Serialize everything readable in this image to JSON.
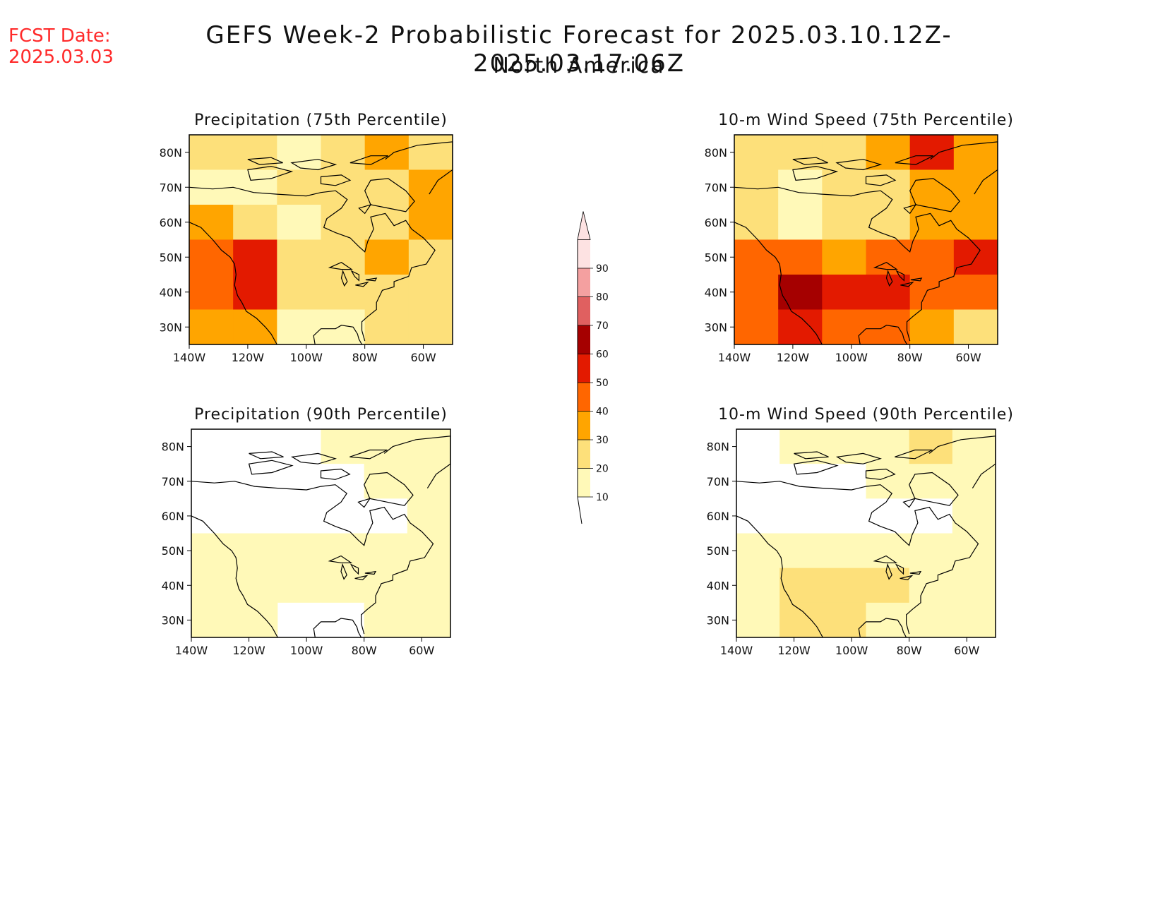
{
  "header": {
    "fcst_label": "FCST Date:",
    "fcst_value": "2025.03.03",
    "title": "GEFS Week-2 Probabilistic Forecast for 2025.03.10.12Z-2025.03.17.06Z",
    "subtitle": "North America"
  },
  "colors": {
    "text_red": "#ff2a2a",
    "bins": [
      "#fff9b8",
      "#fde07a",
      "#ffa500",
      "#ff6600",
      "#e31a00",
      "#a50000",
      "#e06060",
      "#f4a0a0",
      "#fde2e2"
    ]
  },
  "chart_data": [
    {
      "type": "heatmap",
      "title": "Precipitation (75th Percentile)",
      "lat_ticks": [
        "80N",
        "70N",
        "60N",
        "50N",
        "40N",
        "30N"
      ],
      "lon_ticks": [
        "140W",
        "120W",
        "100W",
        "80W",
        "60W"
      ],
      "extent": {
        "lon": [
          -140,
          -50
        ],
        "lat": [
          25,
          85
        ]
      },
      "grid": {
        "lon_step": 15,
        "lat_step": 10
      },
      "lat_rows": [
        "85-75N",
        "75-65N",
        "65-55N",
        "55-45N",
        "45-35N",
        "35-25N"
      ],
      "values": [
        [
          20,
          20,
          15,
          20,
          30,
          25
        ],
        [
          10,
          10,
          20,
          20,
          25,
          30
        ],
        [
          30,
          25,
          15,
          20,
          20,
          35
        ],
        [
          40,
          50,
          20,
          25,
          30,
          25
        ],
        [
          40,
          55,
          25,
          20,
          20,
          20
        ],
        [
          35,
          30,
          15,
          15,
          20,
          20
        ]
      ]
    },
    {
      "type": "heatmap",
      "title": "10-m Wind Speed (75th Percentile)",
      "lat_ticks": [
        "80N",
        "70N",
        "60N",
        "50N",
        "40N",
        "30N"
      ],
      "lon_ticks": [
        "140W",
        "120W",
        "100W",
        "80W",
        "60W"
      ],
      "extent": {
        "lon": [
          -140,
          -50
        ],
        "lat": [
          25,
          85
        ]
      },
      "grid": {
        "lon_step": 15,
        "lat_step": 10
      },
      "lat_rows": [
        "85-75N",
        "75-65N",
        "65-55N",
        "55-45N",
        "45-35N",
        "35-25N"
      ],
      "values": [
        [
          20,
          20,
          25,
          30,
          50,
          30
        ],
        [
          20,
          15,
          20,
          25,
          35,
          35
        ],
        [
          20,
          15,
          20,
          20,
          30,
          35
        ],
        [
          40,
          40,
          35,
          40,
          40,
          50
        ],
        [
          45,
          60,
          55,
          55,
          40,
          40
        ],
        [
          40,
          50,
          45,
          40,
          30,
          25
        ]
      ]
    },
    {
      "type": "heatmap",
      "title": "Precipitation (90th Percentile)",
      "lat_ticks": [
        "80N",
        "70N",
        "60N",
        "50N",
        "40N",
        "30N"
      ],
      "lon_ticks": [
        "140W",
        "120W",
        "100W",
        "80W",
        "60W"
      ],
      "extent": {
        "lon": [
          -140,
          -50
        ],
        "lat": [
          25,
          85
        ]
      },
      "grid": {
        "lon_step": 15,
        "lat_step": 10
      },
      "lat_rows": [
        "85-75N",
        "75-65N",
        "65-55N",
        "55-45N",
        "45-35N",
        "35-25N"
      ],
      "values": [
        [
          0,
          0,
          0,
          10,
          15,
          15
        ],
        [
          0,
          0,
          0,
          0,
          10,
          15
        ],
        [
          0,
          0,
          0,
          0,
          0,
          10
        ],
        [
          15,
          10,
          10,
          10,
          10,
          10
        ],
        [
          15,
          15,
          10,
          10,
          10,
          15
        ],
        [
          10,
          10,
          0,
          0,
          10,
          10
        ]
      ]
    },
    {
      "type": "heatmap",
      "title": "10-m Wind Speed (90th Percentile)",
      "lat_ticks": [
        "80N",
        "70N",
        "60N",
        "50N",
        "40N",
        "30N"
      ],
      "lon_ticks": [
        "140W",
        "120W",
        "100W",
        "80W",
        "60W"
      ],
      "extent": {
        "lon": [
          -140,
          -50
        ],
        "lat": [
          25,
          85
        ]
      },
      "grid": {
        "lon_step": 15,
        "lat_step": 10
      },
      "lat_rows": [
        "85-75N",
        "75-65N",
        "65-55N",
        "55-45N",
        "45-35N",
        "35-25N"
      ],
      "values": [
        [
          0,
          10,
          10,
          15,
          25,
          15
        ],
        [
          0,
          0,
          0,
          10,
          10,
          15
        ],
        [
          0,
          0,
          0,
          0,
          0,
          10
        ],
        [
          10,
          15,
          10,
          15,
          10,
          15
        ],
        [
          15,
          25,
          20,
          25,
          15,
          10
        ],
        [
          10,
          20,
          20,
          15,
          10,
          10
        ]
      ]
    }
  ],
  "colorbar": {
    "labels": [
      "10",
      "20",
      "30",
      "40",
      "50",
      "60",
      "70",
      "80",
      "90"
    ]
  }
}
